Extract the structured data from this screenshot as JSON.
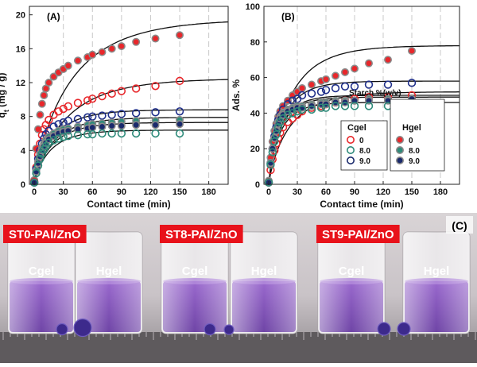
{
  "chart_data": [
    {
      "type": "scatter",
      "panel_label": "(A)",
      "xlabel": "Contact time (min)",
      "ylabel": "q",
      "ylabel_sub": "t",
      "ylabel_unit": " (mg / g)",
      "xlim": [
        -5,
        200
      ],
      "ylim": [
        0,
        21
      ],
      "xticks": [
        0,
        30,
        60,
        90,
        120,
        150,
        180
      ],
      "yticks": [
        0,
        4,
        8,
        12,
        16,
        20
      ],
      "grid": "vertical dashed",
      "series": [
        {
          "name": "Hgel 0",
          "marker": "filled",
          "color": "#e8272b",
          "x": [
            0,
            2,
            4,
            6,
            8,
            10,
            12,
            15,
            20,
            25,
            30,
            35,
            45,
            55,
            60,
            70,
            80,
            90,
            105,
            125,
            150
          ],
          "y": [
            0.5,
            4.2,
            6.5,
            8.2,
            9.5,
            10.5,
            11.3,
            12.0,
            12.7,
            13.2,
            13.6,
            14.0,
            14.6,
            15.0,
            15.3,
            15.6,
            16.0,
            16.3,
            16.8,
            17.2,
            17.6
          ],
          "fit_qe": 19.5,
          "fit_k": 0.045
        },
        {
          "name": "Cgel 0",
          "marker": "open",
          "color": "#e8272b",
          "x": [
            0,
            2,
            4,
            6,
            8,
            10,
            12,
            15,
            20,
            25,
            30,
            35,
            45,
            55,
            60,
            70,
            80,
            90,
            105,
            125,
            150
          ],
          "y": [
            0.3,
            2.0,
            3.5,
            4.8,
            5.8,
            6.5,
            7.0,
            7.6,
            8.2,
            8.6,
            8.9,
            9.2,
            9.6,
            9.9,
            10.1,
            10.4,
            10.7,
            11.0,
            11.3,
            11.6,
            12.2
          ],
          "fit_qe": 12.5,
          "fit_k": 0.05
        },
        {
          "name": "Cgel 9.0",
          "marker": "open",
          "color": "#1f2f8a",
          "x": [
            0,
            2,
            4,
            6,
            8,
            10,
            12,
            15,
            20,
            25,
            30,
            35,
            45,
            55,
            60,
            70,
            80,
            90,
            105,
            125,
            150
          ],
          "y": [
            0.2,
            1.8,
            3.0,
            4.0,
            4.8,
            5.4,
            5.9,
            6.3,
            6.8,
            7.1,
            7.3,
            7.5,
            7.7,
            7.9,
            8.0,
            8.1,
            8.2,
            8.3,
            8.4,
            8.5,
            8.6
          ],
          "fit_qe": 8.8,
          "fit_k": 0.08
        },
        {
          "name": "Hgel 8.0",
          "marker": "filled",
          "color": "#2e8b7a",
          "x": [
            0,
            2,
            4,
            6,
            8,
            10,
            12,
            15,
            20,
            25,
            30,
            35,
            45,
            55,
            60,
            70,
            80,
            90,
            105,
            125,
            150
          ],
          "y": [
            0.2,
            1.6,
            2.7,
            3.6,
            4.3,
            4.8,
            5.2,
            5.6,
            6.0,
            6.3,
            6.5,
            6.6,
            6.8,
            7.0,
            7.1,
            7.2,
            7.3,
            7.4,
            7.5,
            7.5,
            7.6
          ],
          "fit_qe": 7.9,
          "fit_k": 0.08
        },
        {
          "name": "Hgel 9.0",
          "marker": "filled",
          "color": "#1a2a6c",
          "x": [
            0,
            2,
            4,
            6,
            8,
            10,
            12,
            15,
            20,
            25,
            30,
            35,
            45,
            55,
            60,
            70,
            80,
            90,
            105,
            125,
            150
          ],
          "y": [
            0.2,
            1.5,
            2.5,
            3.3,
            4.0,
            4.5,
            4.9,
            5.3,
            5.7,
            6.0,
            6.2,
            6.3,
            6.5,
            6.6,
            6.7,
            6.8,
            6.9,
            6.9,
            7.0,
            7.0,
            7.1
          ],
          "fit_qe": 7.3,
          "fit_k": 0.085
        },
        {
          "name": "Cgel 8.0",
          "marker": "open",
          "color": "#2e8b7a",
          "x": [
            0,
            2,
            4,
            6,
            8,
            10,
            12,
            15,
            20,
            25,
            30,
            35,
            45,
            55,
            60,
            70,
            80,
            90,
            105,
            125,
            150
          ],
          "y": [
            0.2,
            1.3,
            2.2,
            3.0,
            3.6,
            4.1,
            4.5,
            4.9,
            5.2,
            5.4,
            5.6,
            5.7,
            5.8,
            5.9,
            5.9,
            6.0,
            6.0,
            6.0,
            6.0,
            6.0,
            6.0
          ],
          "fit_qe": 6.4,
          "fit_k": 0.09
        }
      ]
    },
    {
      "type": "scatter",
      "panel_label": "(B)",
      "xlabel": "Contact time (min)",
      "ylabel": "Ads. %",
      "xlim": [
        -5,
        200
      ],
      "ylim": [
        0,
        100
      ],
      "xticks": [
        0,
        30,
        60,
        90,
        120,
        150,
        180
      ],
      "yticks": [
        0,
        20,
        40,
        60,
        80,
        100
      ],
      "grid": "vertical dashed",
      "series": [
        {
          "name": "Hgel 0",
          "marker": "filled",
          "color": "#e8272b",
          "x": [
            0,
            2,
            4,
            6,
            8,
            10,
            12,
            15,
            20,
            25,
            30,
            35,
            45,
            55,
            60,
            70,
            80,
            90,
            105,
            125,
            150
          ],
          "y": [
            2,
            15,
            24,
            30,
            34,
            38,
            41,
            44,
            47,
            50,
            52,
            54,
            56,
            58,
            59,
            61,
            63,
            65,
            68,
            70,
            75
          ],
          "fit_qe": 78,
          "fit_k": 0.07
        },
        {
          "name": "Cgel 9.0",
          "marker": "open",
          "color": "#1f2f8a",
          "x": [
            0,
            2,
            4,
            6,
            8,
            10,
            12,
            15,
            20,
            25,
            30,
            35,
            45,
            55,
            60,
            70,
            80,
            90,
            105,
            125,
            150
          ],
          "y": [
            1,
            12,
            20,
            27,
            32,
            36,
            39,
            42,
            45,
            47,
            48,
            50,
            51,
            52,
            53,
            54,
            55,
            55,
            56,
            56,
            57
          ],
          "fit_qe": 58,
          "fit_k": 0.1
        },
        {
          "name": "Cgel 0",
          "marker": "open",
          "color": "#e8272b",
          "x": [
            0,
            2,
            4,
            6,
            8,
            10,
            12,
            15,
            20,
            25,
            30,
            35,
            45,
            55,
            60,
            70,
            80,
            90,
            105,
            125,
            150
          ],
          "y": [
            1,
            8,
            14,
            19,
            23,
            26,
            29,
            32,
            35,
            37,
            39,
            41,
            43,
            44,
            45,
            46,
            47,
            48,
            49,
            49,
            50
          ],
          "fit_qe": 52,
          "fit_k": 0.07
        },
        {
          "name": "Hgel 8.0",
          "marker": "filled",
          "color": "#2e8b7a",
          "x": [
            0,
            2,
            4,
            6,
            8,
            10,
            12,
            15,
            20,
            25,
            30,
            35,
            45,
            55,
            60,
            70,
            80,
            90,
            105,
            125,
            150
          ],
          "y": [
            1,
            12,
            20,
            26,
            31,
            35,
            38,
            40,
            42,
            43,
            44,
            44,
            45,
            46,
            46,
            47,
            47,
            47,
            48,
            48,
            48
          ],
          "fit_qe": 50,
          "fit_k": 0.12
        },
        {
          "name": "Hgel 9.0",
          "marker": "filled",
          "color": "#1a2a6c",
          "x": [
            0,
            2,
            4,
            6,
            8,
            10,
            12,
            15,
            20,
            25,
            30,
            35,
            45,
            55,
            60,
            70,
            80,
            90,
            105,
            125,
            150
          ],
          "y": [
            1,
            12,
            20,
            26,
            30,
            34,
            37,
            39,
            41,
            42,
            43,
            43,
            44,
            45,
            45,
            46,
            46,
            47,
            47,
            47,
            48
          ],
          "fit_qe": 49,
          "fit_k": 0.12
        },
        {
          "name": "Cgel 8.0",
          "marker": "open",
          "color": "#2e8b7a",
          "x": [
            0,
            2,
            4,
            6,
            8,
            10,
            12,
            15,
            20,
            25,
            30,
            35,
            45,
            55,
            60,
            70,
            80,
            90,
            105,
            125,
            150
          ],
          "y": [
            1,
            11,
            18,
            24,
            28,
            32,
            35,
            37,
            39,
            40,
            41,
            42,
            42,
            43,
            43,
            44,
            44,
            44,
            44,
            44,
            45
          ],
          "fit_qe": 46,
          "fit_k": 0.12
        }
      ]
    }
  ],
  "legend": {
    "title": "Starch %(w/v)",
    "cgel_label": "Cgel",
    "hgel_label": "Hgel",
    "levels": [
      "0",
      "8.0",
      "9.0"
    ],
    "colors": [
      "#e8272b",
      "#2e8b7a",
      "#1a2a6c"
    ]
  },
  "photo": {
    "panel_label": "(C)",
    "samples": [
      {
        "label": "ST0-PAI/ZnO",
        "cgel": "Cgel",
        "hgel": "Hgel"
      },
      {
        "label": "ST8-PAI/ZnO",
        "cgel": "Cgel",
        "hgel": "Hgel"
      },
      {
        "label": "ST9-PAI/ZnO",
        "cgel": "Cgel",
        "hgel": "Hgel"
      }
    ],
    "label_color": "#e8121b",
    "liquid_color": "#7b3fb8"
  }
}
